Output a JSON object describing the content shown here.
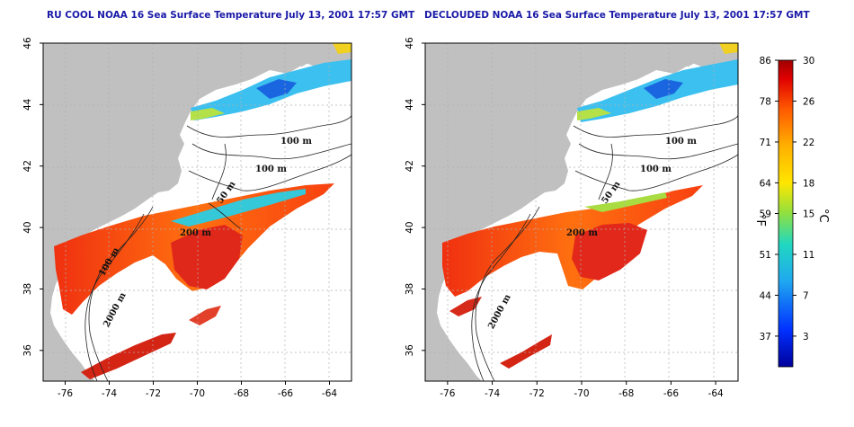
{
  "panels": [
    {
      "title": "RU COOL NOAA 16 Sea Surface Temperature July 13, 2001 17:57 GMT",
      "contour_labels": [
        "100 m",
        "100 m",
        "50 m",
        "200 m",
        "100 m",
        "2000 m"
      ]
    },
    {
      "title": "DECLOUDED NOAA 16 Sea Surface Temperature July 13, 2001 17:57 GMT",
      "contour_labels": [
        "100 m",
        "100 m",
        "50 m",
        "200 m",
        "2000 m"
      ]
    }
  ],
  "axes": {
    "x_ticks": [
      "-76",
      "-74",
      "-72",
      "-70",
      "-68",
      "-66",
      "-64"
    ],
    "y_ticks": [
      "46",
      "44",
      "42",
      "40",
      "38",
      "36"
    ],
    "lon_range": [
      -77,
      -63
    ],
    "lat_range": [
      35,
      46
    ]
  },
  "colorbar": {
    "fahrenheit_ticks": [
      "86",
      "78",
      "71",
      "64",
      "59",
      "51",
      "44",
      "37"
    ],
    "celsius_ticks": [
      "30",
      "26",
      "22",
      "18",
      "15",
      "11",
      "7",
      "3"
    ],
    "fahrenheit_unit": "°F",
    "celsius_unit": "°C",
    "range_c": [
      0,
      30
    ],
    "colors": [
      "#e00000",
      "#ff5a00",
      "#ffb000",
      "#ffe600",
      "#8fe040",
      "#20d8c0",
      "#20a8f0",
      "#0050ff",
      "#00009a"
    ]
  },
  "colors": {
    "land": "#c0c0c0",
    "grid": "#aaaaaa",
    "title": "#1a1aa8",
    "sst_warm": "#e02a10",
    "sst_mid": "#ff7a10",
    "sst_cool": "#40c8e8"
  }
}
